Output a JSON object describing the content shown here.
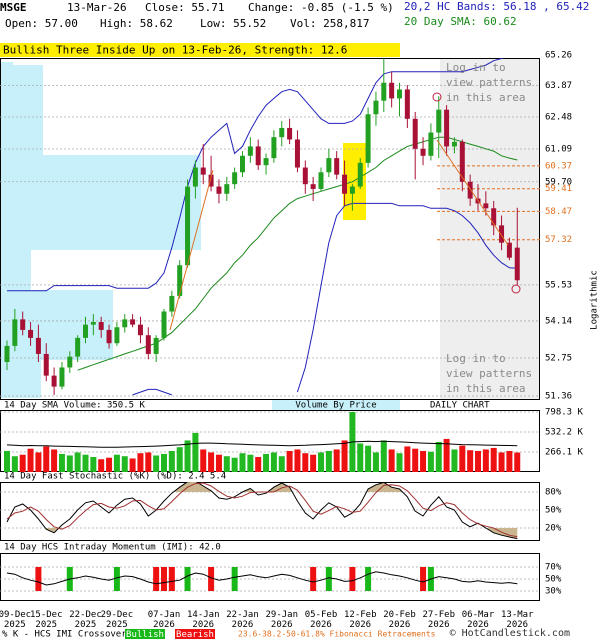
{
  "header": {
    "symbol": "MSGE",
    "date": "13-Mar-26",
    "close": "Close: 55.71",
    "change": "Change: -0.85 (-1.5 %)",
    "bands": "20,2 HC Bands: 56.18 , 65.42",
    "open": "Open: 57.00",
    "high": "High: 58.62",
    "low": "Low: 55.52",
    "volume": "Vol: 258,817",
    "sma": "20 Day SMA: 60.62",
    "banner": "Bullish Three Inside Up on 13-Feb-26, Strength: 12.6"
  },
  "login_text": "Log in to view patterns in this area",
  "footer": "© HotCandlestick.com",
  "chart_data": [
    {
      "type": "candlestick",
      "y_label": "Logarithmic",
      "log_scale": true,
      "grid": true,
      "up_color": "#22a022",
      "down_color": "#a81035",
      "categories": [
        null,
        "09-Dec 2025",
        null,
        null,
        null,
        "15-Dec 2025",
        null,
        null,
        null,
        null,
        "22-Dec 2025",
        null,
        null,
        null,
        "29-Dec 2025",
        null,
        null,
        null,
        null,
        null,
        "07-Jan 2026",
        null,
        null,
        null,
        null,
        "14-Jan 2026",
        null,
        null,
        null,
        null,
        "22-Jan 2026",
        null,
        null,
        null,
        null,
        "29-Jan 2026",
        null,
        null,
        null,
        null,
        "05-Feb 2026",
        null,
        null,
        null,
        null,
        "12-Feb 2026",
        null,
        null,
        null,
        null,
        "20-Feb 2026",
        null,
        null,
        null,
        null,
        "27-Feb 2026",
        null,
        null,
        null,
        null,
        "06-Mar 2026",
        null,
        null,
        null,
        null,
        "13-Mar 2026"
      ],
      "open": [
        52.6,
        53.2,
        54.2,
        53.8,
        53.5,
        52.9,
        52.1,
        51.7,
        52.4,
        52.8,
        53.5,
        54.0,
        54.1,
        53.8,
        53.3,
        53.9,
        54.2,
        54.0,
        53.6,
        52.9,
        53.5,
        54.5,
        55.1,
        56.3,
        59.5,
        60.3,
        60.0,
        59.5,
        59.2,
        59.6,
        60.1,
        60.8,
        61.2,
        60.4,
        60.7,
        61.6,
        62.0,
        61.5,
        60.3,
        59.6,
        59.4,
        60.1,
        60.7,
        60.0,
        59.2,
        59.5,
        60.5,
        62.6,
        63.2,
        64.0,
        63.3,
        63.7,
        62.4,
        61.1,
        60.8,
        61.8,
        62.8,
        61.2,
        61.4,
        59.7,
        59.0,
        58.8,
        58.6,
        57.9,
        57.2,
        57.0
      ],
      "high": [
        53.4,
        54.6,
        54.5,
        54.1,
        54.0,
        53.3,
        52.4,
        52.6,
        53.0,
        53.6,
        54.3,
        54.4,
        54.3,
        54.0,
        54.1,
        54.4,
        54.4,
        54.3,
        53.9,
        53.6,
        54.6,
        55.3,
        56.5,
        59.8,
        60.6,
        61.3,
        60.8,
        59.8,
        59.9,
        60.3,
        61.0,
        61.6,
        61.5,
        60.9,
        61.9,
        62.3,
        62.4,
        61.9,
        60.6,
        59.9,
        60.3,
        61.1,
        61.0,
        60.6,
        59.6,
        60.7,
        62.9,
        63.6,
        65.1,
        64.5,
        64.0,
        63.9,
        62.7,
        61.6,
        62.2,
        63.4,
        63.0,
        61.6,
        61.5,
        60.0,
        59.6,
        59.3,
        58.9,
        58.3,
        57.4,
        58.62
      ],
      "low": [
        52.3,
        53.0,
        53.6,
        53.2,
        52.6,
        51.9,
        51.4,
        51.6,
        52.2,
        52.6,
        53.3,
        53.6,
        53.5,
        53.1,
        53.2,
        53.7,
        53.9,
        53.3,
        52.7,
        52.6,
        53.4,
        54.3,
        55.0,
        56.2,
        59.0,
        59.6,
        59.3,
        58.8,
        58.9,
        59.4,
        59.9,
        60.5,
        60.2,
        60.0,
        60.5,
        61.2,
        61.3,
        60.1,
        59.2,
        58.9,
        59.3,
        59.9,
        59.8,
        58.7,
        58.5,
        59.4,
        60.3,
        62.1,
        62.7,
        62.9,
        62.5,
        62.0,
        59.8,
        60.4,
        60.6,
        60.7,
        60.8,
        60.9,
        59.3,
        58.7,
        58.5,
        58.3,
        57.5,
        56.9,
        56.5,
        55.52
      ],
      "close": [
        53.2,
        54.2,
        53.8,
        53.5,
        52.9,
        52.1,
        51.7,
        52.4,
        52.8,
        53.5,
        54.0,
        54.1,
        53.8,
        53.3,
        53.9,
        54.2,
        54.0,
        53.6,
        52.9,
        53.5,
        54.5,
        55.1,
        56.3,
        59.5,
        60.3,
        60.0,
        59.5,
        59.2,
        59.6,
        60.1,
        60.8,
        61.2,
        60.4,
        60.7,
        61.6,
        62.0,
        61.5,
        60.3,
        59.6,
        59.4,
        60.1,
        60.7,
        60.0,
        59.2,
        59.5,
        60.5,
        62.6,
        63.2,
        64.0,
        63.3,
        63.7,
        62.4,
        61.1,
        60.8,
        61.8,
        62.8,
        61.2,
        61.4,
        59.7,
        59.0,
        58.8,
        58.6,
        57.9,
        57.2,
        56.6,
        55.71
      ],
      "series": [
        {
          "color": "#2222bb",
          "values": [
            55.3,
            55.3,
            55.3,
            55.3,
            55.3,
            55.3,
            55.5,
            55.5,
            55.5,
            55.5,
            55.5,
            55.5,
            55.5,
            55.5,
            55.4,
            55.4,
            55.4,
            55.4,
            55.4,
            55.6,
            56.0,
            57.0,
            58.2,
            59.5,
            60.5,
            61.2,
            61.6,
            61.9,
            62.2,
            60.9,
            61.2,
            61.9,
            62.5,
            63.0,
            63.3,
            63.6,
            63.7,
            63.6,
            63.2,
            62.8,
            62.4,
            62.2,
            62.2,
            62.2,
            62.3,
            62.6,
            63.3,
            64.0,
            64.4,
            64.5,
            64.5,
            64.5,
            64.5,
            64.5,
            64.5,
            64.5,
            64.5,
            64.5,
            64.5,
            64.6,
            64.7,
            64.8,
            65.0,
            65.1,
            65.3,
            65.42
          ]
        },
        {
          "color": "#2222bb",
          "values": [
            null,
            null,
            null,
            null,
            null,
            null,
            null,
            null,
            null,
            null,
            null,
            null,
            null,
            null,
            null,
            null,
            51.4,
            51.5,
            51.6,
            51.6,
            51.5,
            51.4,
            null,
            null,
            null,
            null,
            null,
            null,
            null,
            null,
            null,
            null,
            null,
            null,
            null,
            null,
            null,
            51.5,
            52.4,
            53.8,
            55.5,
            57.2,
            58.3,
            58.7,
            58.8,
            58.8,
            58.8,
            58.8,
            58.8,
            58.8,
            58.7,
            58.7,
            58.7,
            58.7,
            58.6,
            58.6,
            58.6,
            58.5,
            58.3,
            58.0,
            57.6,
            57.1,
            56.7,
            56.4,
            56.2,
            56.18
          ]
        },
        {
          "color": "#1a8a1a",
          "values": [
            null,
            null,
            null,
            null,
            null,
            null,
            null,
            null,
            null,
            52.3,
            52.4,
            52.5,
            52.6,
            52.7,
            52.8,
            52.9,
            53.0,
            53.1,
            53.2,
            53.3,
            53.5,
            53.7,
            54.0,
            54.3,
            54.6,
            55.0,
            55.4,
            55.7,
            56.0,
            56.4,
            56.7,
            57.1,
            57.4,
            57.8,
            58.2,
            58.5,
            58.8,
            59.0,
            59.1,
            59.2,
            59.3,
            59.4,
            59.5,
            59.6,
            59.7,
            59.9,
            60.1,
            60.3,
            60.6,
            60.8,
            61.0,
            61.2,
            61.3,
            61.4,
            61.5,
            61.6,
            61.6,
            61.5,
            61.4,
            61.3,
            61.2,
            61.1,
            61.0,
            60.8,
            60.7,
            60.62
          ]
        }
      ],
      "fib_color": "#e07020",
      "fib_levels": [
        60.37,
        59.41,
        58.47,
        57.32
      ],
      "fib_label": "23.6-38.2-50-61.8% Fibonacci Retracements",
      "ylim": [
        51.36,
        65.26
      ],
      "yticks": [
        65.26,
        63.87,
        62.48,
        61.09,
        {
          "value": 59.7,
          "label": "59.70"
        },
        55.53,
        54.14,
        52.75,
        51.36
      ]
    },
    {
      "type": "bar",
      "title": "14 Day SMA Volume: 350.5 K",
      "subtitle": "Volume By Price",
      "note": "DAILY CHART",
      "values": [
        280000,
        210000,
        230000,
        310000,
        260000,
        340000,
        300000,
        240000,
        220000,
        260000,
        230000,
        200000,
        170000,
        190000,
        230000,
        210000,
        180000,
        250000,
        260000,
        220000,
        240000,
        280000,
        330000,
        420000,
        520000,
        300000,
        260000,
        230000,
        210000,
        190000,
        250000,
        230000,
        200000,
        240000,
        260000,
        210000,
        280000,
        300000,
        250000,
        230000,
        260000,
        280000,
        300000,
        420000,
        798300,
        380000,
        350000,
        260000,
        420000,
        300000,
        250000,
        340000,
        310000,
        280000,
        270000,
        400000,
        440000,
        300000,
        350000,
        290000,
        280000,
        300000,
        320000,
        260000,
        280000,
        258817
      ],
      "series": [
        {
          "color": "#000000",
          "values": [
            360000,
            355000,
            350000,
            352000,
            350000,
            348000,
            345000,
            342000,
            340000,
            338000,
            335000,
            333000,
            330000,
            328000,
            330000,
            332000,
            335000,
            338000,
            340000,
            345000,
            350000,
            355000,
            360000,
            370000,
            380000,
            385000,
            385000,
            380000,
            375000,
            372000,
            370000,
            365000,
            360000,
            358000,
            355000,
            352000,
            350000,
            352000,
            355000,
            360000,
            365000,
            370000,
            375000,
            380000,
            400000,
            405000,
            408000,
            405000,
            410000,
            405000,
            400000,
            395000,
            390000,
            385000,
            380000,
            378000,
            375000,
            370000,
            365000,
            362000,
            360000,
            358000,
            356000,
            354000,
            352000,
            350500
          ]
        }
      ],
      "ylim": [
        0,
        798300
      ],
      "yticks": [
        {
          "value": 798300,
          "label": "798.3 K"
        },
        {
          "value": 532200,
          "label": "532.2 K"
        },
        {
          "value": 266100,
          "label": "266.1 K"
        }
      ]
    },
    {
      "type": "line",
      "title": "14 Day Fast Stochastic (%K) (%D): 2.4   5.4",
      "shade_color": "#c9b58f",
      "bands": [
        80,
        20
      ],
      "series": [
        {
          "color": "#000000",
          "values": [
            30,
            55,
            60,
            50,
            35,
            18,
            12,
            25,
            35,
            50,
            62,
            65,
            55,
            45,
            58,
            68,
            70,
            60,
            40,
            50,
            65,
            78,
            88,
            97,
            98,
            90,
            82,
            70,
            68,
            72,
            80,
            86,
            75,
            78,
            88,
            95,
            88,
            65,
            45,
            35,
            50,
            62,
            55,
            38,
            45,
            60,
            85,
            92,
            96,
            88,
            85,
            72,
            48,
            40,
            58,
            72,
            55,
            50,
            30,
            22,
            28,
            20,
            12,
            8,
            5,
            2.4
          ]
        },
        {
          "color": "#a03030",
          "values": [
            35,
            45,
            48,
            55,
            48,
            34,
            22,
            18,
            24,
            37,
            49,
            59,
            61,
            55,
            53,
            57,
            65,
            66,
            57,
            50,
            52,
            64,
            77,
            88,
            94,
            95,
            90,
            81,
            73,
            70,
            73,
            79,
            80,
            80,
            80,
            87,
            90,
            83,
            66,
            48,
            43,
            49,
            56,
            52,
            46,
            48,
            63,
            79,
            91,
            92,
            90,
            82,
            68,
            53,
            49,
            57,
            62,
            59,
            45,
            34,
            27,
            23,
            20,
            13,
            8,
            5.4
          ]
        }
      ],
      "ylim": [
        0,
        100
      ],
      "yticks": [
        {
          "value": 80,
          "label": "80%"
        },
        {
          "value": 50,
          "label": "50%"
        },
        {
          "value": 20,
          "label": "20%"
        }
      ]
    },
    {
      "type": "line",
      "title": "14 Day HCS Intraday Momentum (IMI): 42.0",
      "legend_title": "% K - HCS IMI Crossover,",
      "series": [
        {
          "color": "#000000",
          "values": [
            60,
            58,
            52,
            48,
            45,
            40,
            42,
            46,
            50,
            52,
            55,
            53,
            50,
            48,
            52,
            55,
            54,
            50,
            45,
            42,
            44,
            46,
            48,
            55,
            60,
            58,
            52,
            48,
            50,
            53,
            55,
            57,
            54,
            52,
            55,
            58,
            56,
            52,
            48,
            45,
            48,
            52,
            50,
            46,
            47,
            52,
            58,
            62,
            60,
            57,
            55,
            52,
            48,
            45,
            50,
            54,
            52,
            50,
            46,
            45,
            47,
            45,
            44,
            43,
            44,
            42.0
          ]
        },
        {
          "name": "Bullish",
          "color": "#18b818"
        },
        {
          "name": "Bearish",
          "color": "#ee1111"
        }
      ],
      "signals": [
        null,
        null,
        null,
        null,
        "Bearish",
        null,
        null,
        null,
        "Bullish",
        null,
        null,
        null,
        null,
        null,
        "Bullish",
        null,
        null,
        null,
        null,
        "Bearish",
        "Bearish",
        "Bearish",
        null,
        "Bullish",
        null,
        null,
        "Bearish",
        null,
        null,
        "Bullish",
        null,
        null,
        null,
        null,
        null,
        null,
        null,
        null,
        null,
        "Bearish",
        null,
        "Bullish",
        null,
        null,
        "Bearish",
        null,
        "Bullish",
        null,
        null,
        null,
        null,
        null,
        null,
        "Bearish",
        "Bullish",
        null,
        null,
        null,
        null,
        null,
        null,
        null,
        null,
        null,
        null,
        null
      ],
      "ylim": [
        15,
        95
      ],
      "yticks": [
        {
          "value": 70,
          "label": "70%"
        },
        {
          "value": 50,
          "label": "50%"
        },
        {
          "value": 30,
          "label": "30%"
        }
      ]
    }
  ]
}
